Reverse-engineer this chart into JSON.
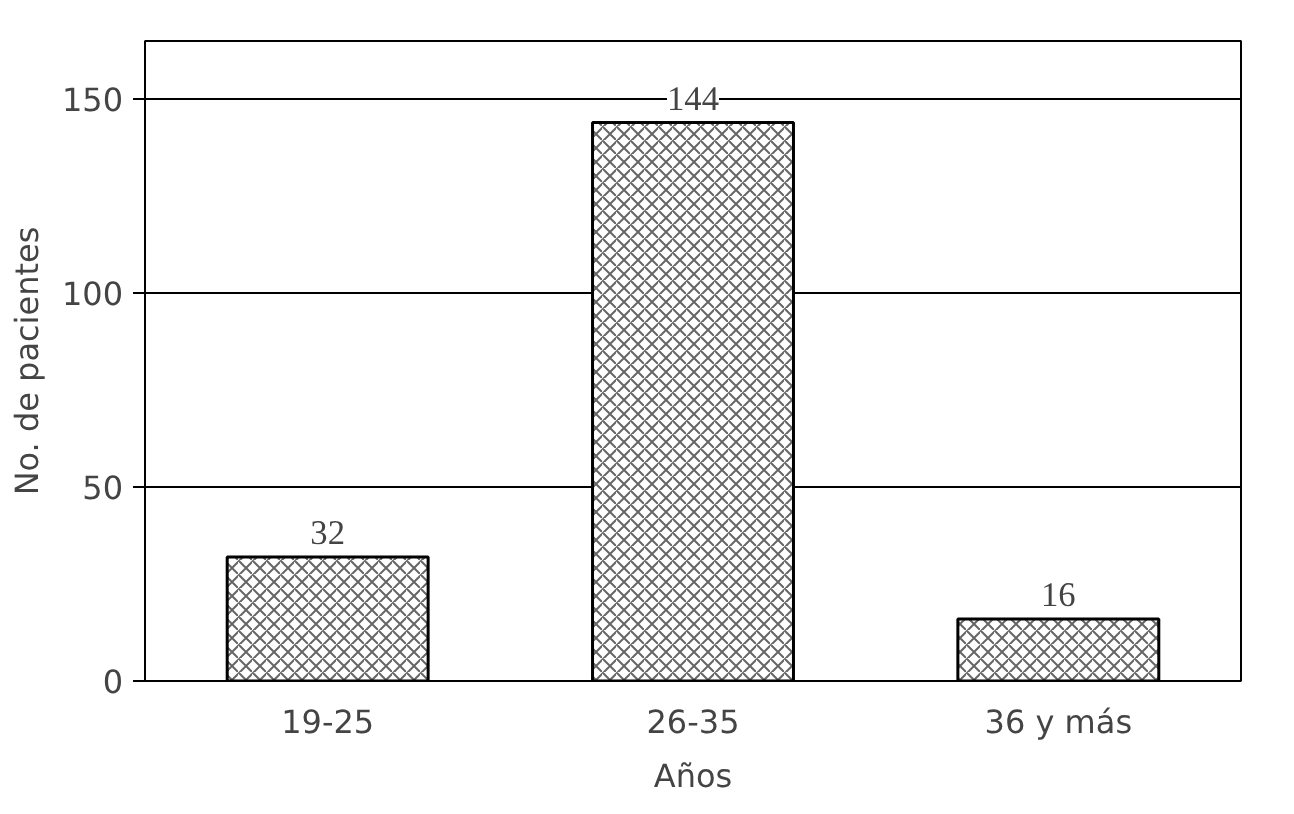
{
  "chart_data": {
    "type": "bar",
    "xlabel": "Años",
    "ylabel": "No. de pacientes",
    "categories": [
      "19-25",
      "26-35",
      "36 y más"
    ],
    "values": [
      32,
      144,
      16
    ],
    "color": "#ffffff",
    "ylim": [
      0,
      165
    ],
    "yticks": [
      0,
      50,
      100,
      150
    ],
    "grid": "y",
    "data_labels": true
  }
}
